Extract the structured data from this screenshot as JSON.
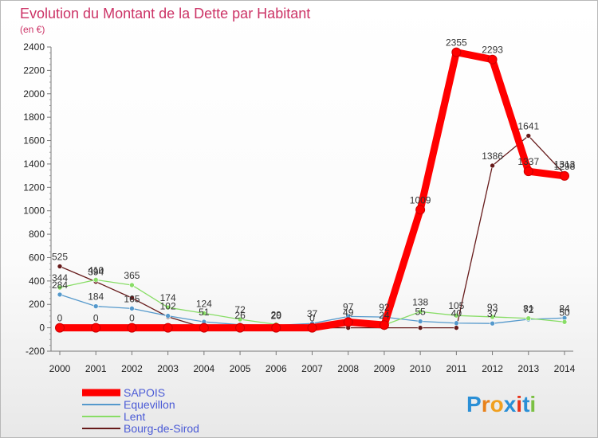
{
  "chart_data": {
    "type": "line",
    "title": "Evolution du Montant de la Dette par Habitant",
    "subtitle": "(en €)",
    "x": [
      "2000",
      "2001",
      "2002",
      "2003",
      "2004",
      "2005",
      "2006",
      "2007",
      "2008",
      "2009",
      "2010",
      "2011",
      "2012",
      "2013",
      "2014"
    ],
    "ylim": [
      -200,
      2400
    ],
    "yticks": [
      -200,
      0,
      200,
      400,
      600,
      800,
      1000,
      1200,
      1400,
      1600,
      1800,
      2000,
      2200,
      2400
    ],
    "series": [
      {
        "name": "SAPOIS",
        "color": "#ff0000",
        "values": [
          0,
          0,
          0,
          0,
          0,
          0,
          0,
          0,
          49,
          24,
          1009,
          2355,
          2293,
          1337,
          1298
        ],
        "labels": [
          "0",
          "0",
          "0",
          "",
          "",
          "",
          "",
          "",
          "",
          "",
          "1009",
          "2355",
          "2293",
          "1337",
          "1298"
        ]
      },
      {
        "name": "Equevillon",
        "color": "#5599cc",
        "values": [
          284,
          184,
          165,
          102,
          51,
          26,
          20,
          37,
          97,
          92,
          55,
          40,
          37,
          72,
          84
        ],
        "labels": [
          "284",
          "184",
          "165",
          "102",
          "51",
          "26",
          "20",
          "37",
          "97",
          "92",
          "55",
          "40",
          "37",
          "72",
          "84"
        ]
      },
      {
        "name": "Lent",
        "color": "#88dd66",
        "values": [
          344,
          410,
          365,
          174,
          124,
          72,
          29,
          0,
          49,
          24,
          138,
          105,
          93,
          81,
          50
        ],
        "labels": [
          "344",
          "410",
          "365",
          "174",
          "124",
          "72",
          "29",
          "0",
          "49",
          "24",
          "138",
          "105",
          "93",
          "81",
          "50"
        ]
      },
      {
        "name": "Bourg-de-Sirod",
        "color": "#661a1a",
        "values": [
          525,
          394,
          255,
          94,
          0,
          0,
          0,
          0,
          0,
          0,
          0,
          0,
          1386,
          1641,
          1313
        ],
        "labels": [
          "525",
          "394",
          "",
          "",
          "",
          "",
          "",
          "",
          "",
          "",
          "",
          "",
          "1386",
          "1641",
          "1313"
        ]
      }
    ],
    "legend_position": "bottom-left"
  },
  "logo": {
    "text": "Proxiti",
    "letters": [
      "P",
      "r",
      "o",
      "x",
      "i",
      "t",
      "i"
    ],
    "colors": [
      "#2a8fd6",
      "#e8811a",
      "#f0a020",
      "#2a8fd6",
      "#e8331a",
      "#2a8fd6",
      "#7bc043"
    ]
  }
}
